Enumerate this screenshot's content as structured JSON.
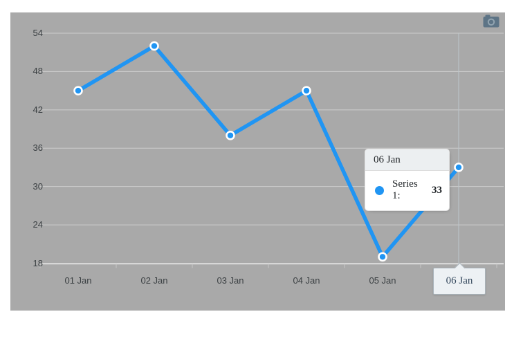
{
  "chart_data": {
    "type": "line",
    "title": "",
    "xlabel": "",
    "ylabel": "",
    "categories": [
      "01 Jan",
      "02 Jan",
      "03 Jan",
      "04 Jan",
      "05 Jan",
      "06 Jan"
    ],
    "series": [
      {
        "name": "Series 1",
        "color": "#2095f3",
        "values": [
          45,
          52,
          38,
          45,
          19,
          33
        ]
      }
    ],
    "y_ticks": [
      54,
      48,
      42,
      36,
      30,
      24,
      18
    ],
    "ylim": [
      18,
      54
    ],
    "grid": true,
    "legend_position": "none",
    "highlighted_point": {
      "category": "06 Jan",
      "series": "Series 1",
      "value": 33,
      "index": 5
    }
  },
  "tooltip": {
    "title": "06 Jan",
    "series_label": "Series 1:",
    "value": "33",
    "marker_color": "#2095f3"
  },
  "xaxis_tooltip": {
    "label": "06 Jan"
  },
  "toolbar": {
    "camera_icon": "camera"
  },
  "colors": {
    "page_bg": "#ffffff",
    "panel_bg": "#a9a9a9",
    "gridline": "#cdcdcd",
    "axis_line": "#dedede",
    "tick": "#c6c6c6",
    "crosshair": "#bdc7cd",
    "axis_label": "#3b4043",
    "series_blue": "#2095f3",
    "marker_ring": "#ffffff",
    "tooltip_title_bg": "#eceff1",
    "camera_icon": "#5d7486",
    "camera_lens_ring": "#93a5b1"
  }
}
